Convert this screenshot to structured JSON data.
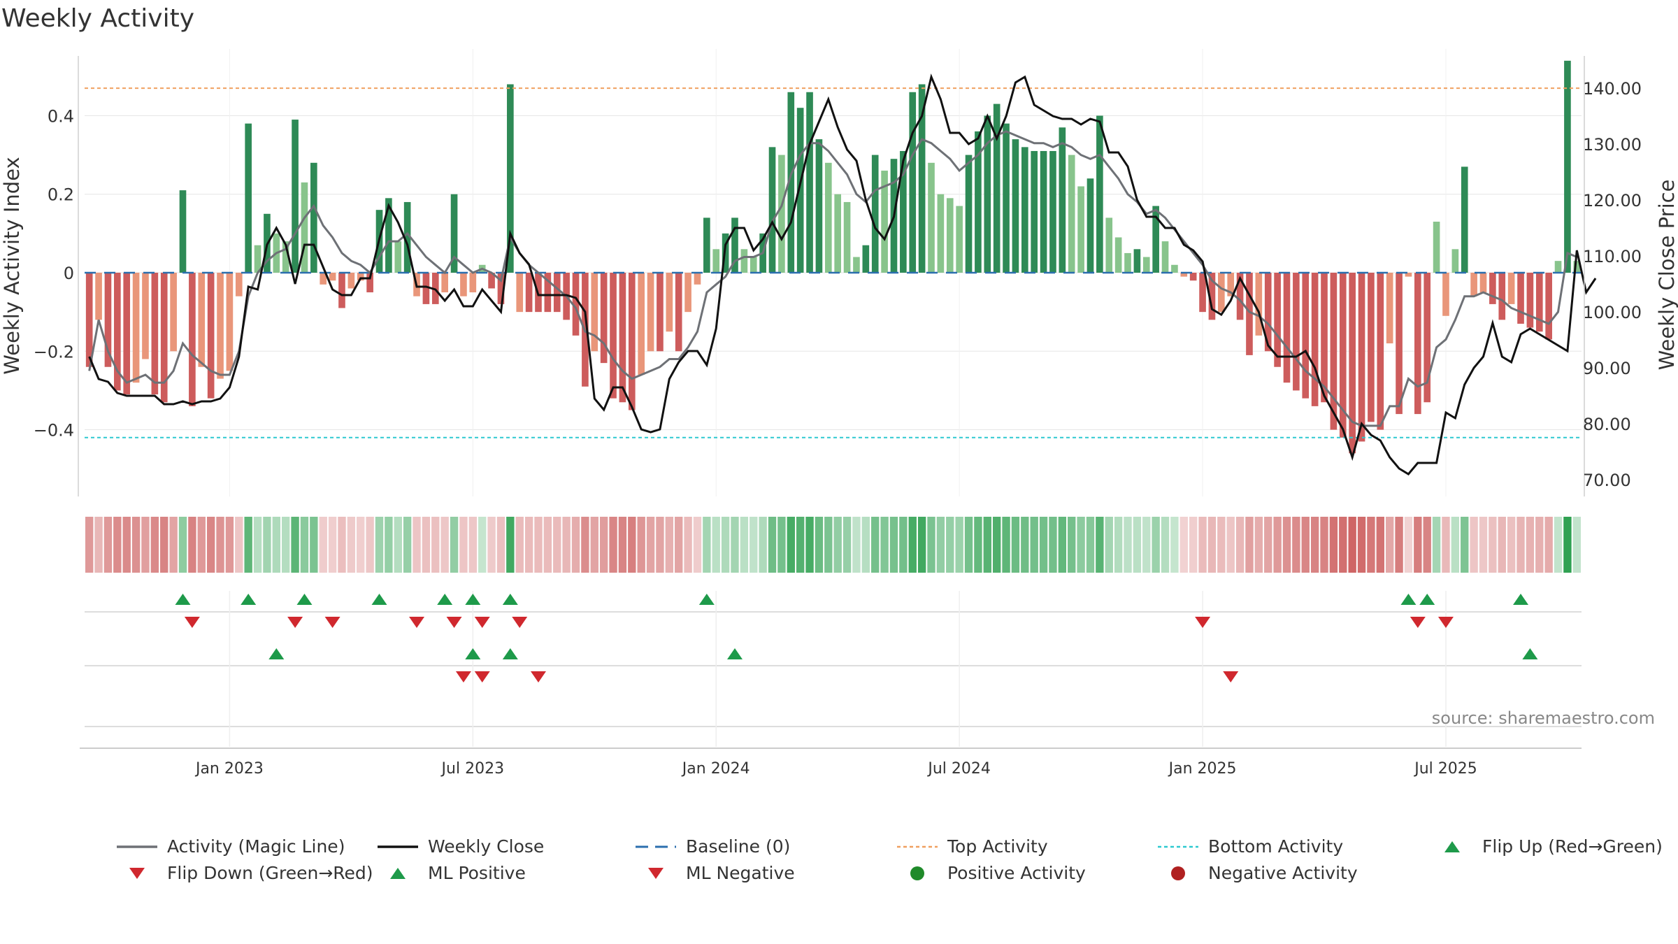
{
  "title": "Weekly Activity",
  "source": "source: sharemaestro.com",
  "chart_data": {
    "type": "bar",
    "title": "Weekly Activity",
    "ylabel": "Weekly Activity Index",
    "ylabel_right": "Weekly Close Price",
    "ylim": [
      -0.57,
      0.57
    ],
    "ylim_right": [
      67,
      147
    ],
    "y_ticks": [
      {
        "value": 0.4,
        "label": "0.4"
      },
      {
        "value": 0.2,
        "label": "0.2"
      },
      {
        "value": 0,
        "label": "0"
      },
      {
        "value": -0.2,
        "label": "−0.2"
      },
      {
        "value": -0.4,
        "label": "−0.4"
      }
    ],
    "y_ticks_right": [
      {
        "value": 140,
        "label": "140.00"
      },
      {
        "value": 130,
        "label": "130.00"
      },
      {
        "value": 120,
        "label": "120.00"
      },
      {
        "value": 110,
        "label": "110.00"
      },
      {
        "value": 100,
        "label": "100.00"
      },
      {
        "value": 90,
        "label": "90.00"
      },
      {
        "value": 80,
        "label": "80.00"
      },
      {
        "value": 70,
        "label": "70.00"
      }
    ],
    "x_ticks": [
      {
        "week": 15,
        "label": "Jan 2023"
      },
      {
        "week": 41,
        "label": "Jul 2023"
      },
      {
        "week": 67,
        "label": "Jan 2024"
      },
      {
        "week": 93,
        "label": "Jul 2024"
      },
      {
        "week": 119,
        "label": "Jan 2025"
      },
      {
        "week": 145,
        "label": "Jul 2025"
      }
    ],
    "top_activity": 0.47,
    "bottom_activity": -0.42,
    "baseline": 0,
    "activity": [
      -0.24,
      -0.12,
      -0.24,
      -0.3,
      -0.31,
      -0.28,
      -0.22,
      -0.31,
      -0.33,
      -0.2,
      0.21,
      -0.34,
      -0.24,
      -0.32,
      -0.27,
      -0.25,
      -0.06,
      0.38,
      0.07,
      0.15,
      0.1,
      0.08,
      0.39,
      0.23,
      0.28,
      -0.03,
      -0.02,
      -0.09,
      -0.04,
      -0.02,
      -0.05,
      0.16,
      0.19,
      0.08,
      0.18,
      -0.06,
      -0.08,
      -0.08,
      -0.05,
      0.2,
      -0.06,
      -0.05,
      0.02,
      -0.04,
      -0.08,
      0.48,
      -0.1,
      -0.1,
      -0.1,
      -0.1,
      -0.1,
      -0.12,
      -0.16,
      -0.29,
      -0.2,
      -0.23,
      -0.32,
      -0.33,
      -0.35,
      -0.26,
      -0.2,
      -0.2,
      -0.15,
      -0.2,
      -0.1,
      -0.03,
      0.14,
      0.06,
      0.1,
      0.14,
      0.06,
      0.04,
      0.1,
      0.32,
      0.3,
      0.46,
      0.42,
      0.46,
      0.34,
      0.28,
      0.2,
      0.18,
      0.04,
      0.07,
      0.3,
      0.26,
      0.29,
      0.31,
      0.46,
      0.48,
      0.28,
      0.2,
      0.19,
      0.17,
      0.3,
      0.36,
      0.4,
      0.43,
      0.38,
      0.34,
      0.32,
      0.31,
      0.31,
      0.31,
      0.37,
      0.3,
      0.22,
      0.24,
      0.4,
      0.14,
      0.09,
      0.05,
      0.06,
      0.04,
      0.17,
      0.08,
      0.02,
      -0.01,
      -0.02,
      -0.1,
      -0.12,
      -0.1,
      -0.06,
      -0.12,
      -0.21,
      -0.16,
      -0.2,
      -0.24,
      -0.28,
      -0.3,
      -0.32,
      -0.34,
      -0.33,
      -0.4,
      -0.42,
      -0.46,
      -0.43,
      -0.38,
      -0.4,
      -0.18,
      -0.36,
      -0.01,
      -0.36,
      -0.33,
      0.13,
      -0.11,
      0.06,
      0.27,
      -0.06,
      -0.05,
      -0.08,
      -0.12,
      -0.08,
      -0.13,
      -0.14,
      -0.15,
      -0.17,
      0.03,
      0.54,
      0.03
    ],
    "magic_line": [
      -0.25,
      -0.12,
      -0.2,
      -0.25,
      -0.28,
      -0.27,
      -0.26,
      -0.28,
      -0.28,
      -0.25,
      -0.18,
      -0.21,
      -0.23,
      -0.25,
      -0.26,
      -0.26,
      -0.2,
      -0.06,
      0.0,
      0.03,
      0.05,
      0.06,
      0.1,
      0.14,
      0.17,
      0.12,
      0.09,
      0.05,
      0.03,
      0.02,
      0.0,
      0.04,
      0.08,
      0.08,
      0.1,
      0.07,
      0.04,
      0.02,
      0.0,
      0.04,
      0.02,
      0.0,
      0.01,
      0.0,
      -0.02,
      0.09,
      0.05,
      0.02,
      0.0,
      -0.02,
      -0.04,
      -0.06,
      -0.09,
      -0.15,
      -0.16,
      -0.18,
      -0.22,
      -0.25,
      -0.27,
      -0.26,
      -0.25,
      -0.24,
      -0.22,
      -0.22,
      -0.19,
      -0.15,
      -0.05,
      -0.03,
      -0.01,
      0.03,
      0.04,
      0.04,
      0.05,
      0.13,
      0.17,
      0.25,
      0.3,
      0.33,
      0.33,
      0.31,
      0.28,
      0.25,
      0.2,
      0.18,
      0.21,
      0.22,
      0.23,
      0.25,
      0.3,
      0.34,
      0.33,
      0.31,
      0.29,
      0.26,
      0.28,
      0.3,
      0.33,
      0.35,
      0.36,
      0.35,
      0.34,
      0.33,
      0.33,
      0.32,
      0.33,
      0.32,
      0.3,
      0.29,
      0.3,
      0.27,
      0.24,
      0.2,
      0.18,
      0.15,
      0.16,
      0.14,
      0.11,
      0.08,
      0.05,
      0.02,
      -0.02,
      -0.04,
      -0.05,
      -0.07,
      -0.1,
      -0.11,
      -0.13,
      -0.16,
      -0.19,
      -0.22,
      -0.25,
      -0.27,
      -0.29,
      -0.32,
      -0.35,
      -0.38,
      -0.39,
      -0.39,
      -0.39,
      -0.34,
      -0.34,
      -0.27,
      -0.29,
      -0.28,
      -0.19,
      -0.17,
      -0.12,
      -0.06,
      -0.06,
      -0.05,
      -0.06,
      -0.07,
      -0.09,
      -0.1,
      -0.11,
      -0.12,
      -0.13,
      -0.1,
      0.05,
      0.04
    ],
    "weekly_close": [
      92,
      88,
      87.5,
      85.5,
      85,
      85,
      85,
      85,
      83.5,
      83.5,
      84,
      83.5,
      84,
      84,
      84.5,
      86.5,
      92,
      104.5,
      104,
      112,
      115,
      112,
      105,
      112,
      112,
      108,
      104,
      103,
      103,
      106,
      106,
      113,
      119,
      116,
      112,
      104.5,
      104.5,
      104,
      102,
      104,
      101,
      101,
      104,
      102,
      100,
      114,
      110.5,
      108.5,
      103,
      103,
      103,
      103,
      102.5,
      100,
      84.5,
      82.5,
      86.5,
      86.5,
      83,
      79,
      78.5,
      79,
      88,
      91,
      93,
      93,
      90.5,
      97,
      112,
      115,
      115,
      111,
      113,
      116,
      113,
      116,
      123,
      130,
      134,
      138,
      133,
      129,
      127,
      120,
      115,
      113,
      117,
      127,
      132,
      135,
      142,
      138,
      132,
      132,
      130,
      131,
      135,
      131,
      135,
      141,
      142,
      137,
      136,
      135,
      134.5,
      134.5,
      133.5,
      134.5,
      134,
      128.5,
      128.5,
      126,
      120,
      117,
      117,
      115,
      115,
      112,
      111,
      109,
      100.5,
      99.5,
      102,
      106,
      103,
      100,
      94,
      92,
      92,
      92,
      93,
      90,
      85,
      82,
      79,
      74,
      80,
      78,
      77,
      74,
      72,
      71,
      73,
      73,
      73,
      82,
      81,
      87,
      90,
      92,
      98,
      92,
      91,
      96,
      97,
      96,
      95,
      94,
      93,
      111,
      103.5,
      106
    ],
    "flip_up": [
      10,
      17,
      23,
      31,
      38,
      41,
      45,
      66,
      141,
      143,
      153
    ],
    "flip_down": [
      11,
      22,
      26,
      35,
      39,
      42,
      46,
      119,
      142,
      145
    ],
    "ml_positive": [
      20,
      41,
      45,
      69,
      154
    ],
    "ml_negative": [
      40,
      42,
      48,
      122
    ],
    "legend": [
      {
        "label": "Activity (Magic Line)",
        "type": "line",
        "color": "#6e7176"
      },
      {
        "label": "Weekly Close",
        "type": "line",
        "color": "#111111"
      },
      {
        "label": "Baseline (0)",
        "type": "dash",
        "color": "#2b6fae"
      },
      {
        "label": "Top Activity",
        "type": "dot",
        "color": "#f0a060"
      },
      {
        "label": "Bottom Activity",
        "type": "dot",
        "color": "#2ec9d0"
      },
      {
        "label": "Flip Up (Red→Green)",
        "type": "tri-up",
        "color": "#1e9a4a"
      },
      {
        "label": "Flip Down (Green→Red)",
        "type": "tri-down",
        "color": "#d0282e"
      },
      {
        "label": "ML Positive",
        "type": "tri-up",
        "color": "#1e9a4a"
      },
      {
        "label": "ML Negative",
        "type": "tri-down",
        "color": "#d0282e"
      },
      {
        "label": "Positive Activity",
        "type": "circle",
        "color": "#1f8a2a"
      },
      {
        "label": "Negative Activity",
        "type": "circle",
        "color": "#b02020"
      }
    ]
  },
  "colors": {
    "pos_strong": "#2e8a56",
    "pos_light": "#88c48c",
    "neg_strong": "#cd5c5c",
    "neg_light": "#e9967a",
    "grid": "#e6e6e6",
    "axis": "#cfcfcf"
  }
}
